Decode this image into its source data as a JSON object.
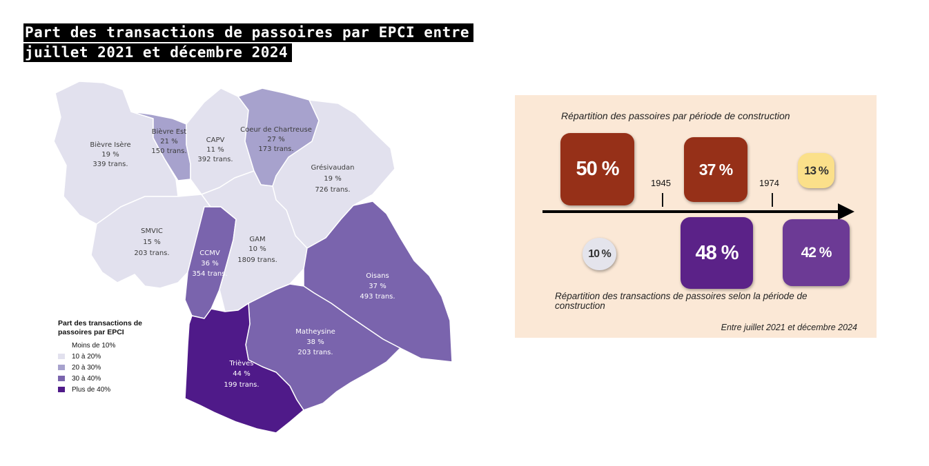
{
  "title": {
    "line1": "Part des transactions de passoires par EPCI entre",
    "line2": "juillet 2021 et décembre 2024"
  },
  "colors": {
    "class_10_20": "#e2e1ee",
    "class_20_30": "#a7a2cd",
    "class_30_40": "#7a64ad",
    "class_40_plus": "#4f1a89",
    "construction_brown": "#963018",
    "construction_yellow": "#fbe08a",
    "transaction_light": "#e4e4ec",
    "transaction_dark_purple": "#5b2288",
    "transaction_purple": "#6c3a95",
    "panel_bg": "#fbe8d6"
  },
  "map": {
    "regions": [
      {
        "id": "bievre-isere",
        "name": "Bièvre Isère",
        "share": "19 %",
        "transactions": "339 trans.",
        "class": "10 à 20%"
      },
      {
        "id": "bievre-est",
        "name": "Bièvre Est",
        "share": "21 %",
        "transactions": "150 trans.",
        "class": "20 à 30%"
      },
      {
        "id": "capv",
        "name": "CAPV",
        "share": "11 %",
        "transactions": "392 trans.",
        "class": "10 à 20%"
      },
      {
        "id": "coeur-de-chartreuse",
        "name": "Coeur de Chartreuse",
        "share": "27 %",
        "transactions": "173 trans.",
        "class": "20 à 30%"
      },
      {
        "id": "gresivaudan",
        "name": "Grésivaudan",
        "share": "19 %",
        "transactions": "726 trans.",
        "class": "10 à 20%"
      },
      {
        "id": "smvic",
        "name": "SMVIC",
        "share": "15 %",
        "transactions": "203 trans.",
        "class": "10 à 20%"
      },
      {
        "id": "ccmv",
        "name": "CCMV",
        "share": "36 %",
        "transactions": "354 trans.",
        "class": "30 à 40%"
      },
      {
        "id": "gam",
        "name": "GAM",
        "share": "10 %",
        "transactions": "1809 trans.",
        "class": "10 à 20%"
      },
      {
        "id": "oisans",
        "name": "Oisans",
        "share": "37 %",
        "transactions": "493 trans.",
        "class": "30 à 40%"
      },
      {
        "id": "matheysine",
        "name": "Matheysine",
        "share": "38 %",
        "transactions": "203 trans.",
        "class": "30 à 40%"
      },
      {
        "id": "trieves",
        "name": "Trièves",
        "share": "44 %",
        "transactions": "199 trans.",
        "class": "Plus de 40%"
      }
    ]
  },
  "legend": {
    "title": "Part des transactions de passoires par EPCI",
    "items": [
      {
        "label": "Moins de 10%",
        "color": "#ffffff"
      },
      {
        "label": "10 à 20%",
        "color": "#e2e1ee"
      },
      {
        "label": "20 à 30%",
        "color": "#a7a2cd"
      },
      {
        "label": "30 à 40%",
        "color": "#7a64ad"
      },
      {
        "label": "Plus de 40%",
        "color": "#4f1a89"
      }
    ]
  },
  "infographic": {
    "top_caption": "Répartition des passoires par période de construction",
    "bottom_caption": "Répartition des transactions de passoires selon la période de construction",
    "date_note": "Entre juillet 2021 et décembre 2024",
    "years": [
      "1945",
      "1974"
    ],
    "passoires_by_period": [
      "50 %",
      "37 %",
      "13 %"
    ],
    "transactions_by_period": [
      "10 %",
      "48 %",
      "42 %"
    ]
  }
}
